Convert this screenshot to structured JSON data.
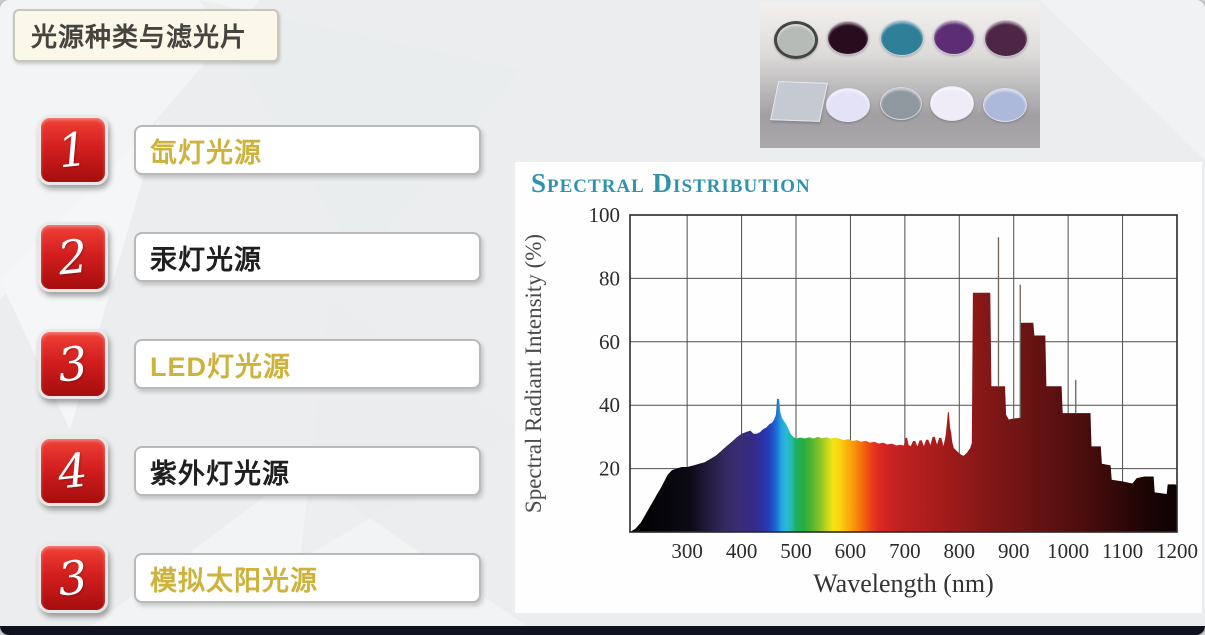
{
  "slide": {
    "title": "光源种类与滤光片",
    "footer_bar_color": "#10131f",
    "gold": "#cdb33d",
    "dark_text": "#1f1f1f"
  },
  "items": [
    {
      "number": "1",
      "label": "氙灯光源",
      "color": "#cdb33d"
    },
    {
      "number": "2",
      "label": "汞灯光源",
      "color": "#1f1f1f"
    },
    {
      "number": "3",
      "label": "LED灯光源",
      "color": "#cdb33d"
    },
    {
      "number": "4",
      "label": "紫外灯光源",
      "color": "#1f1f1f"
    },
    {
      "number": "3",
      "label": "模拟太阳光源",
      "color": "#cdb33d"
    }
  ],
  "filters_image": {
    "top_row_colors": [
      "#b7bbb7",
      "#2a0c1f",
      "#2f7f99",
      "#5c2d72",
      "#4d2547"
    ],
    "plate_color": "#c5cad2",
    "bottom_row_colors": [
      "#e4e2f7",
      "#8f979f",
      "#efecf8",
      "#adb9da"
    ]
  },
  "chart_data": {
    "type": "area",
    "title": "Spectral Distribution",
    "title_color": "#2f93ad",
    "xlabel": "Wavelength (nm)",
    "ylabel": "Spectral Radiant Intensity (%)",
    "xlim": [
      195,
      1200
    ],
    "ylim": [
      0,
      100
    ],
    "x_ticks": [
      300,
      400,
      500,
      600,
      700,
      800,
      900,
      1000,
      1100,
      1200
    ],
    "y_ticks": [
      20,
      40,
      60,
      80,
      100
    ],
    "grid": true,
    "points": [
      [
        195,
        0
      ],
      [
        205,
        1
      ],
      [
        215,
        3
      ],
      [
        225,
        6
      ],
      [
        235,
        9
      ],
      [
        245,
        12
      ],
      [
        252,
        14
      ],
      [
        258,
        16
      ],
      [
        264,
        18
      ],
      [
        272,
        19.5
      ],
      [
        280,
        20
      ],
      [
        290,
        20.5
      ],
      [
        300,
        20.5
      ],
      [
        312,
        21
      ],
      [
        322,
        21.5
      ],
      [
        332,
        22
      ],
      [
        342,
        23
      ],
      [
        352,
        24
      ],
      [
        362,
        25.5
      ],
      [
        372,
        27
      ],
      [
        382,
        28.5
      ],
      [
        392,
        30
      ],
      [
        400,
        31
      ],
      [
        408,
        31.5
      ],
      [
        416,
        32
      ],
      [
        422,
        31
      ],
      [
        428,
        31
      ],
      [
        434,
        31.5
      ],
      [
        440,
        32.5
      ],
      [
        446,
        33
      ],
      [
        451,
        34
      ],
      [
        456,
        34.5
      ],
      [
        460,
        35.5
      ],
      [
        463,
        37
      ],
      [
        464,
        39
      ],
      [
        465,
        42
      ],
      [
        469,
        42
      ],
      [
        471,
        38
      ],
      [
        474,
        36
      ],
      [
        478,
        35
      ],
      [
        482,
        34
      ],
      [
        486,
        32.5
      ],
      [
        490,
        31
      ],
      [
        495,
        30
      ],
      [
        500,
        29.5
      ],
      [
        508,
        29.8
      ],
      [
        516,
        29.5
      ],
      [
        524,
        29.9
      ],
      [
        532,
        29.5
      ],
      [
        540,
        30
      ],
      [
        548,
        29.6
      ],
      [
        556,
        29.9
      ],
      [
        564,
        29.4
      ],
      [
        572,
        29.8
      ],
      [
        580,
        29.4
      ],
      [
        588,
        29
      ],
      [
        596,
        29.3
      ],
      [
        604,
        28.7
      ],
      [
        612,
        29
      ],
      [
        620,
        28.5
      ],
      [
        628,
        28.8
      ],
      [
        636,
        28.2
      ],
      [
        644,
        28.5
      ],
      [
        652,
        27.9
      ],
      [
        660,
        28.2
      ],
      [
        668,
        27.6
      ],
      [
        676,
        27.9
      ],
      [
        684,
        27.3
      ],
      [
        692,
        27.5
      ],
      [
        698,
        27.3
      ],
      [
        701,
        29.6
      ],
      [
        704,
        29.8
      ],
      [
        707,
        27.4
      ],
      [
        711,
        27.1
      ],
      [
        715,
        28.7
      ],
      [
        719,
        28.7
      ],
      [
        723,
        27
      ],
      [
        727,
        28.9
      ],
      [
        731,
        28.9
      ],
      [
        735,
        27.1
      ],
      [
        739,
        29.1
      ],
      [
        743,
        29.1
      ],
      [
        747,
        27.4
      ],
      [
        751,
        30
      ],
      [
        755,
        30
      ],
      [
        759,
        27.6
      ],
      [
        763,
        29.7
      ],
      [
        767,
        29.7
      ],
      [
        771,
        27.1
      ],
      [
        775,
        30.5
      ],
      [
        777,
        34
      ],
      [
        779,
        37.8
      ],
      [
        781,
        37.8
      ],
      [
        783,
        33
      ],
      [
        785,
        31.5
      ],
      [
        787,
        28.5
      ],
      [
        790,
        26.5
      ],
      [
        796,
        25.5
      ],
      [
        802,
        24.5
      ],
      [
        808,
        24
      ],
      [
        814,
        25
      ],
      [
        820,
        26.5
      ],
      [
        823,
        28
      ],
      [
        825,
        75.5
      ],
      [
        857,
        75.5
      ],
      [
        859,
        46
      ],
      [
        884,
        46
      ],
      [
        886,
        37
      ],
      [
        891,
        35.5
      ],
      [
        900,
        35.8
      ],
      [
        911,
        36
      ],
      [
        913,
        66
      ],
      [
        936,
        66
      ],
      [
        938,
        62
      ],
      [
        958,
        62
      ],
      [
        960,
        46
      ],
      [
        988,
        46
      ],
      [
        990,
        37.5
      ],
      [
        1041,
        37.5
      ],
      [
        1043,
        27
      ],
      [
        1060,
        27
      ],
      [
        1062,
        21.5
      ],
      [
        1078,
        21
      ],
      [
        1080,
        16.5
      ],
      [
        1098,
        16
      ],
      [
        1118,
        15.3
      ],
      [
        1126,
        17
      ],
      [
        1140,
        17.5
      ],
      [
        1157,
        17.5
      ],
      [
        1159,
        12.5
      ],
      [
        1181,
        12
      ],
      [
        1183,
        15
      ],
      [
        1197,
        15
      ],
      [
        1200,
        14.5
      ],
      [
        1200,
        0
      ]
    ],
    "spikes": [
      {
        "x": 872,
        "y1": 46,
        "y2": 93
      },
      {
        "x": 912,
        "y1": 36,
        "y2": 78
      },
      {
        "x": 1014,
        "y1": 37.5,
        "y2": 48
      }
    ],
    "gradient_stops": [
      [
        195,
        "#000000"
      ],
      [
        305,
        "#0c0a14"
      ],
      [
        340,
        "#241c3f"
      ],
      [
        370,
        "#352960"
      ],
      [
        395,
        "#3a2d74"
      ],
      [
        420,
        "#342b85"
      ],
      [
        435,
        "#2f2f9e"
      ],
      [
        448,
        "#2a3ab5"
      ],
      [
        458,
        "#1f55cc"
      ],
      [
        466,
        "#1e78d8"
      ],
      [
        472,
        "#22a0e0"
      ],
      [
        482,
        "#2ab9d9"
      ],
      [
        492,
        "#26bba8"
      ],
      [
        500,
        "#1fae62"
      ],
      [
        515,
        "#27ae3f"
      ],
      [
        530,
        "#56b52f"
      ],
      [
        545,
        "#8ec428"
      ],
      [
        558,
        "#c8d81e"
      ],
      [
        568,
        "#f2e313"
      ],
      [
        580,
        "#fbd40d"
      ],
      [
        592,
        "#fbb70b"
      ],
      [
        604,
        "#f99a0a"
      ],
      [
        616,
        "#f57c0b"
      ],
      [
        628,
        "#ef5a10"
      ],
      [
        640,
        "#e63c1c"
      ],
      [
        652,
        "#dd2a20"
      ],
      [
        665,
        "#d32424"
      ],
      [
        680,
        "#c62222"
      ],
      [
        700,
        "#bc2020"
      ],
      [
        730,
        "#b21e1e"
      ],
      [
        760,
        "#a81c1c"
      ],
      [
        790,
        "#9c1a1a"
      ],
      [
        830,
        "#8c1818"
      ],
      [
        870,
        "#7c1616"
      ],
      [
        910,
        "#701414"
      ],
      [
        950,
        "#641212"
      ],
      [
        990,
        "#581010"
      ],
      [
        1030,
        "#4a0d0d"
      ],
      [
        1070,
        "#3a0a0a"
      ],
      [
        1110,
        "#2a0707"
      ],
      [
        1150,
        "#1a0404"
      ],
      [
        1200,
        "#0d0202"
      ]
    ]
  }
}
